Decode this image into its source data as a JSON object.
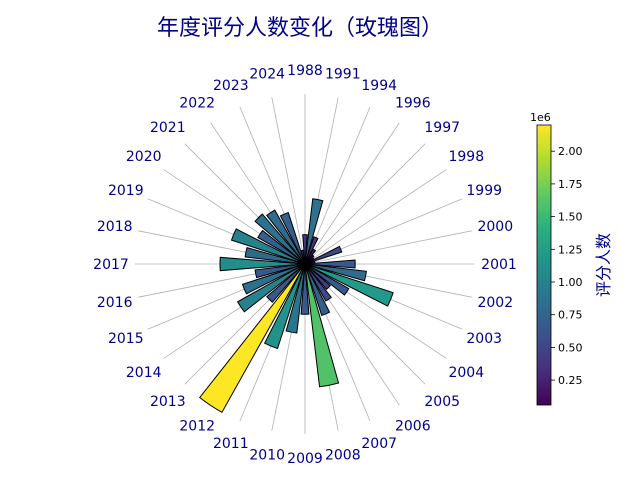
{
  "chart_data": {
    "type": "bar",
    "subtype": "polar-rose",
    "title": "年度评分人数变化（玫瑰图）",
    "categories": [
      "1988",
      "1991",
      "1994",
      "1996",
      "1997",
      "1998",
      "1999",
      "2000",
      "2001",
      "2002",
      "2003",
      "2004",
      "2005",
      "2006",
      "2007",
      "2008",
      "2009",
      "2010",
      "2011",
      "2012",
      "2013",
      "2014",
      "2015",
      "2016",
      "2017",
      "2018",
      "2019",
      "2020",
      "2021",
      "2022",
      "2023",
      "2024"
    ],
    "values": [
      380000,
      850000,
      370000,
      220000,
      150000,
      130000,
      500000,
      130000,
      650000,
      800000,
      1200000,
      650000,
      430000,
      550000,
      700000,
      1600000,
      650000,
      900000,
      1150000,
      2200000,
      650000,
      1000000,
      850000,
      650000,
      1100000,
      780000,
      1000000,
      700000,
      850000,
      800000,
      700000,
      180000
    ],
    "colorbar": {
      "label": "评分人数",
      "colormap": "viridis",
      "range": [
        60000,
        2200000
      ],
      "ticks": [
        "0.25",
        "0.50",
        "0.75",
        "1.00",
        "1.25",
        "1.50",
        "1.75",
        "2.00"
      ],
      "offset_text": "1e6"
    },
    "grid": true,
    "direction": "clockwise",
    "zero_location": "top"
  }
}
